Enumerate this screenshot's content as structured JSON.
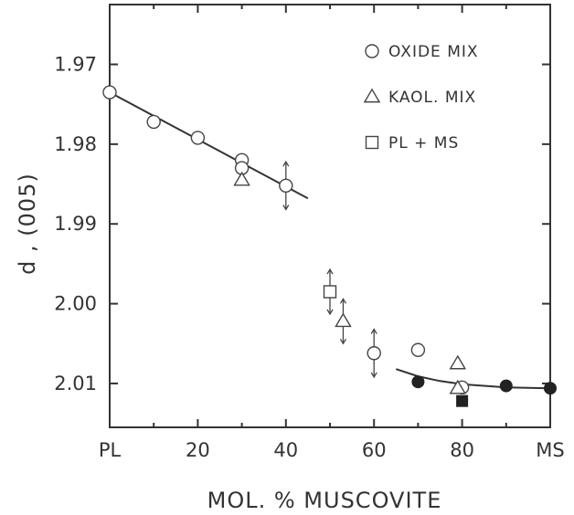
{
  "chart_data": {
    "type": "scatter",
    "xlabel": "MOL. % MUSCOVITE",
    "ylabel": "d , (005)",
    "xlim": [
      0,
      100
    ],
    "ylim": [
      1.9625,
      2.0155
    ],
    "y_inverted": true,
    "x_ticks": [
      0,
      20,
      40,
      60,
      80,
      100
    ],
    "x_tick_labels": [
      "PL",
      "20",
      "40",
      "60",
      "80",
      "MS"
    ],
    "y_ticks": [
      1.97,
      1.98,
      1.99,
      2.0,
      2.01
    ],
    "y_tick_labels": [
      "1.97",
      "1.98",
      "1.99",
      "2.00",
      "2.01"
    ],
    "grid": false,
    "legend_position": "top-right",
    "legend": [
      {
        "marker": "circle-open",
        "label": "OXIDE MIX"
      },
      {
        "marker": "triangle-open",
        "label": "KAOL. MIX"
      },
      {
        "marker": "square-open",
        "label": "PL + MS"
      }
    ],
    "series": [
      {
        "name": "OXIDE MIX",
        "marker": "circle-open",
        "points": [
          {
            "x": 0,
            "y": 1.9735
          },
          {
            "x": 10,
            "y": 1.9772
          },
          {
            "x": 20,
            "y": 1.9792
          },
          {
            "x": 30,
            "y": 1.982
          },
          {
            "x": 30,
            "y": 1.983
          },
          {
            "x": 40,
            "y": 1.9852,
            "err": 0.003
          },
          {
            "x": 60,
            "y": 2.0062,
            "err": 0.003
          },
          {
            "x": 70,
            "y": 2.0058
          },
          {
            "x": 80,
            "y": 2.0105
          }
        ]
      },
      {
        "marker": "circle-filled",
        "points": [
          {
            "x": 70,
            "y": 2.0098
          },
          {
            "x": 90,
            "y": 2.0103
          },
          {
            "x": 100,
            "y": 2.0106
          }
        ]
      },
      {
        "name": "KAOL. MIX",
        "marker": "triangle-open",
        "points": [
          {
            "x": 30,
            "y": 1.9845
          },
          {
            "x": 53,
            "y": 2.0022,
            "err": 0.0028
          },
          {
            "x": 79,
            "y": 2.0075
          },
          {
            "x": 79,
            "y": 2.0106
          }
        ]
      },
      {
        "name": "PL + MS",
        "marker": "square-open",
        "points": [
          {
            "x": 50,
            "y": 1.9985,
            "err": 0.0028
          }
        ]
      },
      {
        "marker": "square-filled",
        "points": [
          {
            "x": 80,
            "y": 2.0122
          }
        ]
      }
    ],
    "fit_lines": [
      {
        "points": [
          [
            0,
            1.9735
          ],
          [
            45,
            1.9868
          ]
        ]
      },
      {
        "points": [
          [
            65,
            2.0082
          ],
          [
            70,
            2.0091
          ],
          [
            75,
            2.0097
          ],
          [
            80,
            2.0101
          ],
          [
            90,
            2.0105
          ],
          [
            100,
            2.0106
          ]
        ]
      }
    ]
  }
}
